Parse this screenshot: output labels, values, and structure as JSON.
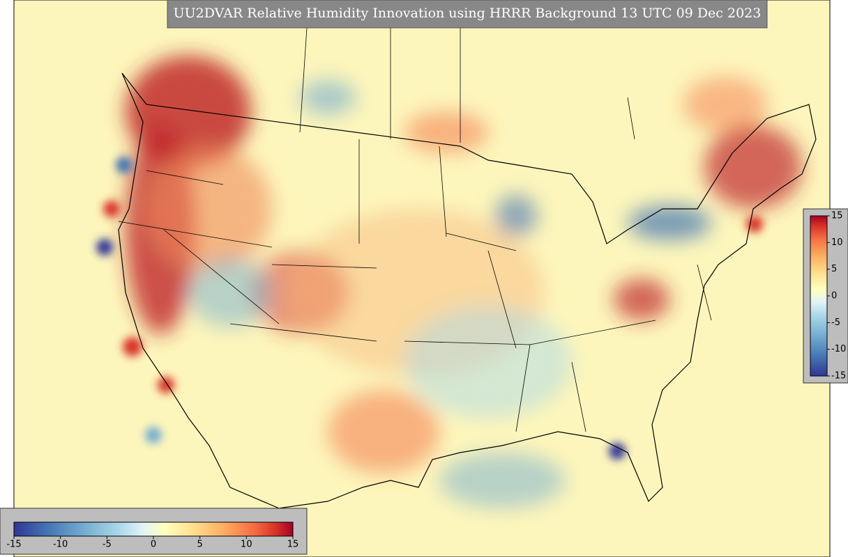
{
  "header": {
    "title": "UU2DVAR Relative Humidity Innovation using HRRR Background 13 UTC 09 Dec 2023"
  },
  "colorbars": {
    "horizontal": {
      "ticks": [
        -15,
        -10,
        -5,
        0,
        5,
        10,
        15
      ]
    },
    "vertical": {
      "ticks": [
        15,
        10,
        5,
        0,
        -5,
        -10,
        -15
      ]
    }
  }
}
